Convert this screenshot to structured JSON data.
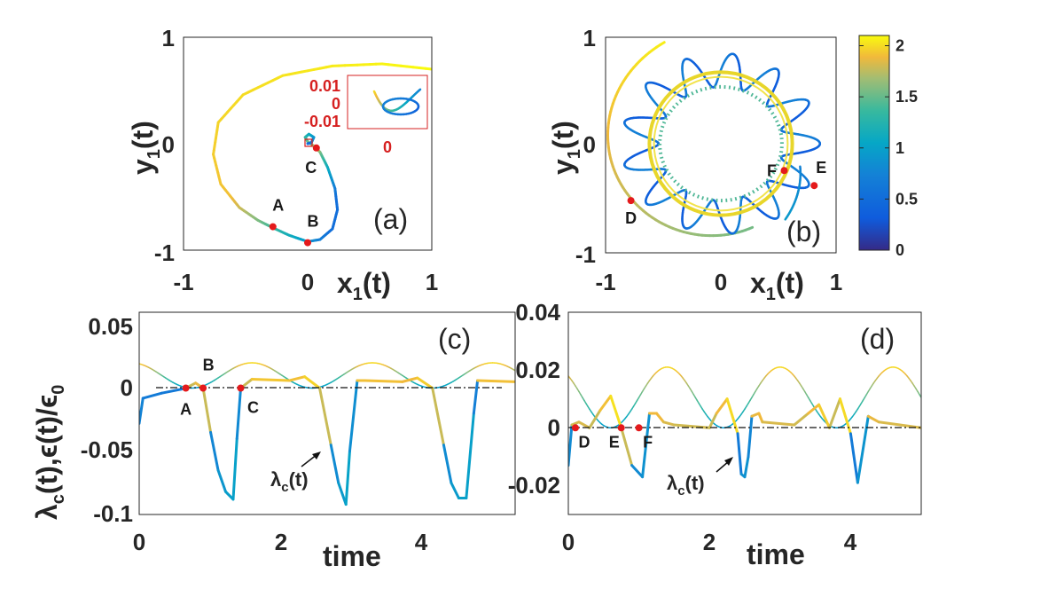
{
  "chart_data": [
    {
      "panel": "(a)",
      "type": "line",
      "xlabel": "x",
      "xlabel_sub": "1",
      "xlabel_tail": "(t)",
      "ylabel": "y",
      "ylabel_sub": "1",
      "ylabel_tail": "(t)",
      "xlim": [
        -1,
        1
      ],
      "ylim": [
        -1,
        1
      ],
      "xticks": [
        "-1",
        "0",
        "1"
      ],
      "yticks": [
        "-1",
        "0",
        "1"
      ],
      "colormap": "parula",
      "color_by": "time (0 to 2)",
      "points": [
        {
          "label": "A",
          "x": -0.28,
          "y": -0.78
        },
        {
          "label": "B",
          "x": 0.0,
          "y": -0.93
        },
        {
          "label": "C",
          "x": 0.07,
          "y": -0.04
        }
      ],
      "inset": {
        "yticks": [
          "0.01",
          "0",
          "-0.01"
        ],
        "xticks": [
          "0"
        ]
      }
    },
    {
      "panel": "(b)",
      "type": "line",
      "xlabel": "x",
      "xlabel_sub": "1",
      "xlabel_tail": "(t)",
      "ylabel": "y",
      "ylabel_sub": "1",
      "ylabel_tail": "(t)",
      "xlim": [
        -1,
        1
      ],
      "ylim": [
        -1,
        1
      ],
      "xticks": [
        "-1",
        "0",
        "1"
      ],
      "yticks": [
        "-1",
        "0",
        "1"
      ],
      "colormap": "parula",
      "points": [
        {
          "label": "D",
          "x": -0.78,
          "y": -0.53
        },
        {
          "label": "E",
          "x": 0.81,
          "y": -0.39
        },
        {
          "label": "F",
          "x": 0.55,
          "y": -0.25
        }
      ],
      "colorbar": {
        "ticks": [
          "2",
          "1.5",
          "1",
          "0.5",
          "0"
        ],
        "range": [
          0,
          2.1
        ]
      }
    },
    {
      "panel": "(c)",
      "type": "line",
      "xlabel": "time",
      "ylabel": "λ",
      "ylabel_sub": "c",
      "ylabel_tail": "(t),ϵ(t)/ϵ",
      "ylabel_sub2": "0",
      "xlim": [
        0,
        5
      ],
      "ylim": [
        -0.1,
        0.06
      ],
      "xticks": [
        "0",
        "2",
        "4"
      ],
      "yticks": [
        "0.05",
        "0",
        "-0.05",
        "-0.1"
      ],
      "annotation": {
        "text": "λ",
        "sub": "c",
        "tail": "(t)"
      },
      "points": [
        {
          "label": "A",
          "x": 0.62,
          "y": 0
        },
        {
          "label": "B",
          "x": 0.85,
          "y": 0
        },
        {
          "label": "C",
          "x": 1.35,
          "y": 0
        }
      ],
      "series": [
        {
          "kind": "lambda_c",
          "x": [
            0,
            0.05,
            0.3,
            0.55,
            0.62,
            0.75,
            0.85,
            0.95,
            1.05,
            1.15,
            1.25,
            1.3,
            1.35,
            1.5,
            2.0,
            2.2,
            2.4,
            2.55,
            2.65,
            2.75,
            2.8,
            2.9,
            3.0,
            3.5,
            3.7,
            3.9,
            4.05,
            4.15,
            4.25,
            4.35,
            4.45,
            4.5,
            5.0
          ],
          "y": [
            -0.028,
            -0.008,
            -0.004,
            -0.001,
            0.0,
            0.004,
            0.0,
            -0.035,
            -0.065,
            -0.082,
            -0.088,
            -0.04,
            0.0,
            0.007,
            0.006,
            0.009,
            0.0,
            -0.045,
            -0.075,
            -0.092,
            -0.05,
            0.006,
            0.006,
            0.005,
            0.008,
            0.0,
            -0.045,
            -0.075,
            -0.087,
            -0.087,
            -0.02,
            0.006,
            0.005
          ]
        },
        {
          "kind": "epsilon_ratio",
          "formula": "0.01 + 0.01*cos(2π(t-1.5)/1.6)",
          "amplitude": 0.01,
          "offset": 0.01,
          "period": 1.6,
          "peak_t": 1.5
        }
      ]
    },
    {
      "panel": "(d)",
      "type": "line",
      "xlabel": "time",
      "xlim": [
        0,
        5
      ],
      "ylim": [
        -0.03,
        0.04
      ],
      "xticks": [
        "0",
        "2",
        "4"
      ],
      "yticks": [
        "0.04",
        "0.02",
        "0",
        "-0.02"
      ],
      "annotation": {
        "text": "λ",
        "sub": "c",
        "tail": "(t)"
      },
      "points": [
        {
          "label": "D",
          "x": 0.1,
          "y": 0
        },
        {
          "label": "E",
          "x": 0.75,
          "y": 0
        },
        {
          "label": "F",
          "x": 1.0,
          "y": 0
        }
      ],
      "series": [
        {
          "kind": "lambda_c",
          "x": [
            0,
            0.05,
            0.15,
            0.3,
            0.45,
            0.6,
            0.75,
            0.9,
            1.05,
            1.15,
            1.25,
            1.35,
            1.5,
            2.0,
            2.1,
            2.25,
            2.4,
            2.45,
            2.5,
            2.55,
            2.6,
            2.7,
            2.75,
            3.2,
            3.4,
            3.55,
            3.7,
            3.85,
            4.0,
            4.1,
            4.25,
            4.4,
            5.0
          ],
          "y": [
            -0.013,
            0.001,
            0.002,
            0.0,
            0.006,
            0.011,
            0.0,
            -0.013,
            -0.017,
            0.005,
            0.005,
            0.002,
            0.001,
            0.0,
            0.005,
            0.01,
            -0.002,
            -0.016,
            -0.017,
            -0.01,
            0.004,
            0.005,
            0.002,
            0.001,
            0.005,
            0.008,
            0.0,
            0.01,
            -0.002,
            -0.019,
            0.004,
            0.002,
            0.0
          ]
        },
        {
          "kind": "epsilon_ratio",
          "formula": "0.0105 + 0.0105*cos(2π(t-1.4)/1.6)",
          "amplitude": 0.0105,
          "offset": 0.0105,
          "period": 1.6,
          "peak_t": 1.4
        }
      ]
    }
  ]
}
